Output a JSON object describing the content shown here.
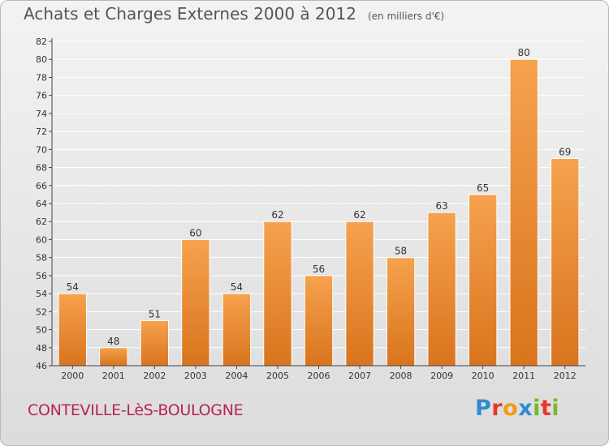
{
  "header": {
    "title": "Achats et Charges Externes 2000 à 2012",
    "unit": "(en milliers d'€)"
  },
  "footer": {
    "commune": "CONTEVILLE-LèS-BOULOGNE",
    "logo": {
      "text": "Proxiti",
      "letter_colors": [
        "#2e8bd6",
        "#e8382b",
        "#f39c12",
        "#2e8bd6",
        "#7ab929",
        "#e8382b",
        "#7ab929"
      ]
    }
  },
  "colors": {
    "bar_top": "#f6a24e",
    "bar_bottom": "#d9741d",
    "bar_edge": "#ffffff",
    "axis": "#444444",
    "grid": "#ffffff",
    "label": "#333333"
  },
  "chart_data": {
    "type": "bar",
    "title": "Achats et Charges Externes 2000 à 2012",
    "subtitle": "(en milliers d'€)",
    "xlabel": "",
    "ylabel": "",
    "categories": [
      "2000",
      "2001",
      "2002",
      "2003",
      "2004",
      "2005",
      "2006",
      "2007",
      "2008",
      "2009",
      "2010",
      "2011",
      "2012"
    ],
    "values": [
      54,
      48,
      51,
      60,
      54,
      62,
      56,
      62,
      58,
      63,
      65,
      80,
      69
    ],
    "ylim": [
      46,
      82
    ],
    "yticks": [
      46,
      48,
      50,
      52,
      54,
      56,
      58,
      60,
      62,
      64,
      66,
      68,
      70,
      72,
      74,
      76,
      78,
      80,
      82
    ],
    "grid": true,
    "legend": "none"
  }
}
